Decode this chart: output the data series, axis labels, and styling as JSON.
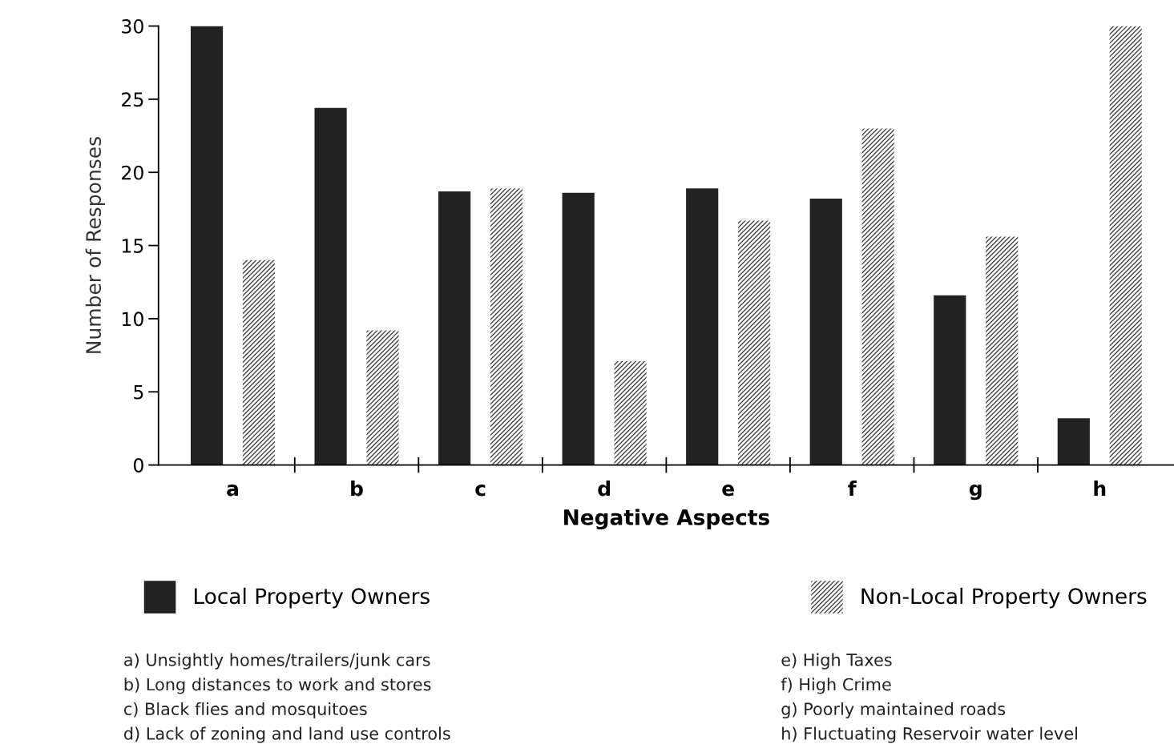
{
  "chart_data": {
    "type": "bar",
    "xlabel": "Negative Aspects",
    "ylabel": "Number of Responses",
    "categories": [
      "a",
      "b",
      "c",
      "d",
      "e",
      "f",
      "g",
      "h"
    ],
    "series": [
      {
        "name": "Local Property Owners",
        "color": "#222222",
        "values": [
          30,
          24.4,
          18.7,
          18.6,
          18.9,
          18.2,
          11.6,
          3.2
        ]
      },
      {
        "name": "Non-Local Property Owners",
        "color": "#444444",
        "values": [
          14.0,
          9.2,
          18.9,
          7.1,
          16.7,
          23.0,
          15.6,
          30
        ]
      }
    ],
    "ylim": [
      0,
      30
    ],
    "yticks": [
      0,
      5,
      10,
      15,
      20,
      25,
      30
    ],
    "grid": false,
    "legend": "bottom",
    "annotations": [
      "a) Unsightly homes/trailers/junk cars",
      "b) Long distances to work and stores",
      "c) Black flies and mosquitoes",
      "d) Lack of zoning and land use controls",
      "e) High Taxes",
      "f) High Crime",
      "g) Poorly maintained roads",
      "h) Fluctuating Reservoir water level"
    ]
  }
}
